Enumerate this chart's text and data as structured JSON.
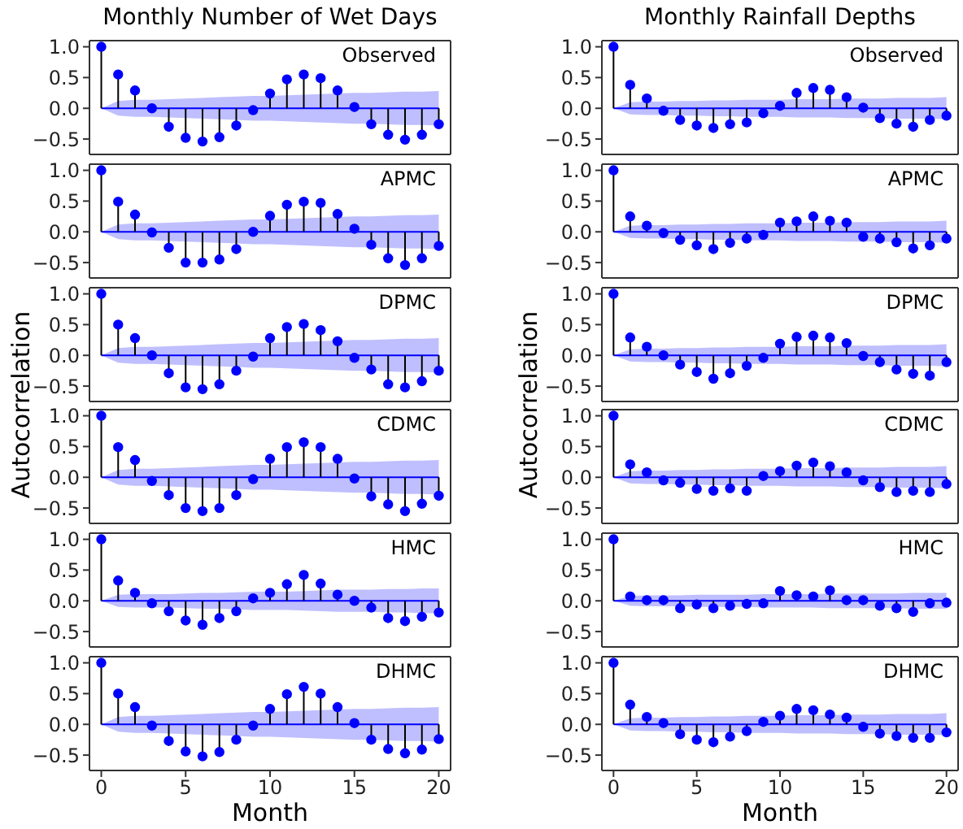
{
  "chart_data": [
    {
      "type": "lollipop",
      "title": "Monthly Number of Wet Days",
      "annotations": [
        "Observed"
      ],
      "tick_labels": "y",
      "marker": "circle",
      "xlim": [
        -0.7,
        20.7
      ],
      "xticks": [
        0,
        5,
        10,
        15,
        20
      ],
      "ylim": [
        -0.75,
        1.1
      ],
      "yticks": [
        {
          "value": -0.5,
          "label": "−0.5"
        },
        {
          "value": 0,
          "label": "0.0"
        },
        {
          "value": 0.5,
          "label": "0.5"
        },
        {
          "value": 1,
          "label": "1.0"
        }
      ],
      "x": [
        0,
        1,
        2,
        3,
        4,
        5,
        6,
        7,
        8,
        9,
        10,
        11,
        12,
        13,
        14,
        15,
        16,
        17,
        18,
        19,
        20
      ],
      "series": [
        {
          "color": "#0000ff",
          "values": [
            1.0,
            0.55,
            0.29,
            0.0,
            -0.3,
            -0.48,
            -0.54,
            -0.47,
            -0.28,
            -0.03,
            0.24,
            0.47,
            0.55,
            0.49,
            0.29,
            0.02,
            -0.26,
            -0.43,
            -0.51,
            -0.43,
            -0.26
          ]
        },
        {
          "type": "line",
          "marker": "none",
          "color": "#0000ff",
          "values": [
            0,
            0,
            0,
            0,
            0,
            0,
            0,
            0,
            0,
            0,
            0,
            0,
            0,
            0,
            0,
            0,
            0,
            0,
            0,
            0,
            0
          ],
          "upper": [
            0,
            0.12,
            0.14,
            0.14,
            0.15,
            0.16,
            0.17,
            0.18,
            0.19,
            0.2,
            0.2,
            0.21,
            0.22,
            0.23,
            0.24,
            0.25,
            0.25,
            0.26,
            0.27,
            0.27,
            0.28
          ],
          "lower": [
            0,
            -0.12,
            -0.14,
            -0.14,
            -0.15,
            -0.16,
            -0.17,
            -0.18,
            -0.19,
            -0.2,
            -0.2,
            -0.21,
            -0.22,
            -0.23,
            -0.24,
            -0.25,
            -0.25,
            -0.26,
            -0.27,
            -0.27,
            -0.28
          ]
        }
      ]
    },
    {
      "type": "lollipop",
      "title": "Monthly Rainfall Depths",
      "annotations": [
        "Observed"
      ],
      "tick_labels": "y",
      "marker": "circle",
      "xlim": [
        -0.7,
        20.7
      ],
      "xticks": [
        0,
        5,
        10,
        15,
        20
      ],
      "ylim": [
        -0.75,
        1.1
      ],
      "yticks": [
        {
          "value": -0.5,
          "label": "−0.5"
        },
        {
          "value": 0,
          "label": "0.0"
        },
        {
          "value": 0.5,
          "label": "0.5"
        },
        {
          "value": 1,
          "label": "1.0"
        }
      ],
      "x": [
        0,
        1,
        2,
        3,
        4,
        5,
        6,
        7,
        8,
        9,
        10,
        11,
        12,
        13,
        14,
        15,
        16,
        17,
        18,
        19,
        20
      ],
      "series": [
        {
          "color": "#0000ff",
          "values": [
            1.0,
            0.38,
            0.16,
            -0.04,
            -0.19,
            -0.28,
            -0.32,
            -0.26,
            -0.23,
            -0.08,
            0.04,
            0.25,
            0.33,
            0.3,
            0.18,
            0.01,
            -0.16,
            -0.25,
            -0.3,
            -0.19,
            -0.12
          ]
        },
        {
          "type": "line",
          "marker": "none",
          "color": "#0000ff",
          "values": [
            0,
            0,
            0,
            0,
            0,
            0,
            0,
            0,
            0,
            0,
            0,
            0,
            0,
            0,
            0,
            0,
            0,
            0,
            0,
            0,
            0
          ],
          "upper": [
            0,
            0.1,
            0.11,
            0.11,
            0.12,
            0.12,
            0.13,
            0.13,
            0.14,
            0.14,
            0.14,
            0.15,
            0.15,
            0.15,
            0.16,
            0.16,
            0.16,
            0.17,
            0.17,
            0.17,
            0.18
          ],
          "lower": [
            0,
            -0.1,
            -0.11,
            -0.11,
            -0.12,
            -0.12,
            -0.13,
            -0.13,
            -0.14,
            -0.14,
            -0.14,
            -0.15,
            -0.15,
            -0.15,
            -0.16,
            -0.16,
            -0.16,
            -0.17,
            -0.17,
            -0.17,
            -0.18
          ]
        }
      ]
    },
    {
      "type": "lollipop",
      "annotations": [
        "APMC"
      ],
      "tick_labels": "y",
      "marker": "circle",
      "xlim": [
        -0.7,
        20.7
      ],
      "xticks": [
        0,
        5,
        10,
        15,
        20
      ],
      "ylim": [
        -0.75,
        1.1
      ],
      "yticks": [
        {
          "value": -0.5,
          "label": "−0.5"
        },
        {
          "value": 0,
          "label": "0.0"
        },
        {
          "value": 0.5,
          "label": "0.5"
        },
        {
          "value": 1,
          "label": "1.0"
        }
      ],
      "x": [
        0,
        1,
        2,
        3,
        4,
        5,
        6,
        7,
        8,
        9,
        10,
        11,
        12,
        13,
        14,
        15,
        16,
        17,
        18,
        19,
        20
      ],
      "series": [
        {
          "color": "#0000ff",
          "values": [
            1.0,
            0.49,
            0.28,
            -0.01,
            -0.26,
            -0.5,
            -0.5,
            -0.45,
            -0.28,
            0.0,
            0.26,
            0.44,
            0.49,
            0.47,
            0.29,
            0.05,
            -0.21,
            -0.43,
            -0.54,
            -0.43,
            -0.23
          ]
        },
        {
          "type": "line",
          "marker": "none",
          "color": "#0000ff",
          "values": [
            0,
            0,
            0,
            0,
            0,
            0,
            0,
            0,
            0,
            0,
            0,
            0,
            0,
            0,
            0,
            0,
            0,
            0,
            0,
            0,
            0
          ],
          "upper": [
            0,
            0.12,
            0.14,
            0.14,
            0.15,
            0.16,
            0.17,
            0.18,
            0.19,
            0.2,
            0.2,
            0.21,
            0.22,
            0.23,
            0.24,
            0.25,
            0.25,
            0.26,
            0.27,
            0.27,
            0.28
          ],
          "lower": [
            0,
            -0.12,
            -0.14,
            -0.14,
            -0.15,
            -0.16,
            -0.17,
            -0.18,
            -0.19,
            -0.2,
            -0.2,
            -0.21,
            -0.22,
            -0.23,
            -0.24,
            -0.25,
            -0.25,
            -0.26,
            -0.27,
            -0.27,
            -0.28
          ]
        }
      ]
    },
    {
      "type": "lollipop",
      "annotations": [
        "APMC"
      ],
      "tick_labels": "y",
      "marker": "circle",
      "xlim": [
        -0.7,
        20.7
      ],
      "xticks": [
        0,
        5,
        10,
        15,
        20
      ],
      "ylim": [
        -0.75,
        1.1
      ],
      "yticks": [
        {
          "value": -0.5,
          "label": "−0.5"
        },
        {
          "value": 0,
          "label": "0.0"
        },
        {
          "value": 0.5,
          "label": "0.5"
        },
        {
          "value": 1,
          "label": "1.0"
        }
      ],
      "x": [
        0,
        1,
        2,
        3,
        4,
        5,
        6,
        7,
        8,
        9,
        10,
        11,
        12,
        13,
        14,
        15,
        16,
        17,
        18,
        19,
        20
      ],
      "series": [
        {
          "color": "#0000ff",
          "values": [
            1.0,
            0.25,
            0.1,
            -0.02,
            -0.13,
            -0.22,
            -0.28,
            -0.18,
            -0.11,
            -0.05,
            0.15,
            0.17,
            0.25,
            0.18,
            0.15,
            -0.08,
            -0.11,
            -0.17,
            -0.27,
            -0.22,
            -0.11
          ]
        },
        {
          "type": "line",
          "marker": "none",
          "color": "#0000ff",
          "values": [
            0,
            0,
            0,
            0,
            0,
            0,
            0,
            0,
            0,
            0,
            0,
            0,
            0,
            0,
            0,
            0,
            0,
            0,
            0,
            0,
            0
          ],
          "upper": [
            0,
            0.1,
            0.11,
            0.11,
            0.12,
            0.12,
            0.13,
            0.13,
            0.14,
            0.14,
            0.14,
            0.15,
            0.15,
            0.15,
            0.16,
            0.16,
            0.16,
            0.17,
            0.17,
            0.17,
            0.18
          ],
          "lower": [
            0,
            -0.1,
            -0.11,
            -0.11,
            -0.12,
            -0.12,
            -0.13,
            -0.13,
            -0.14,
            -0.14,
            -0.14,
            -0.15,
            -0.15,
            -0.15,
            -0.16,
            -0.16,
            -0.16,
            -0.17,
            -0.17,
            -0.17,
            -0.18
          ]
        }
      ]
    },
    {
      "type": "lollipop",
      "ylabel": "Autocorrelation",
      "annotations": [
        "DPMC"
      ],
      "tick_labels": "y",
      "marker": "circle",
      "xlim": [
        -0.7,
        20.7
      ],
      "xticks": [
        0,
        5,
        10,
        15,
        20
      ],
      "ylim": [
        -0.75,
        1.1
      ],
      "yticks": [
        {
          "value": -0.5,
          "label": "−0.5"
        },
        {
          "value": 0,
          "label": "0.0"
        },
        {
          "value": 0.5,
          "label": "0.5"
        },
        {
          "value": 1,
          "label": "1.0"
        }
      ],
      "x": [
        0,
        1,
        2,
        3,
        4,
        5,
        6,
        7,
        8,
        9,
        10,
        11,
        12,
        13,
        14,
        15,
        16,
        17,
        18,
        19,
        20
      ],
      "series": [
        {
          "color": "#0000ff",
          "values": [
            1.0,
            0.5,
            0.28,
            0.0,
            -0.29,
            -0.52,
            -0.55,
            -0.47,
            -0.25,
            -0.02,
            0.28,
            0.46,
            0.51,
            0.41,
            0.23,
            -0.04,
            -0.23,
            -0.47,
            -0.52,
            -0.42,
            -0.25
          ]
        },
        {
          "type": "line",
          "marker": "none",
          "color": "#0000ff",
          "values": [
            0,
            0,
            0,
            0,
            0,
            0,
            0,
            0,
            0,
            0,
            0,
            0,
            0,
            0,
            0,
            0,
            0,
            0,
            0,
            0,
            0
          ],
          "upper": [
            0,
            0.12,
            0.14,
            0.14,
            0.15,
            0.16,
            0.17,
            0.18,
            0.19,
            0.2,
            0.2,
            0.21,
            0.22,
            0.23,
            0.24,
            0.25,
            0.25,
            0.26,
            0.27,
            0.27,
            0.28
          ],
          "lower": [
            0,
            -0.12,
            -0.14,
            -0.14,
            -0.15,
            -0.16,
            -0.17,
            -0.18,
            -0.19,
            -0.2,
            -0.2,
            -0.21,
            -0.22,
            -0.23,
            -0.24,
            -0.25,
            -0.25,
            -0.26,
            -0.27,
            -0.27,
            -0.28
          ]
        }
      ]
    },
    {
      "type": "lollipop",
      "ylabel": "Autocorrelation",
      "annotations": [
        "DPMC"
      ],
      "tick_labels": "y",
      "marker": "circle",
      "xlim": [
        -0.7,
        20.7
      ],
      "xticks": [
        0,
        5,
        10,
        15,
        20
      ],
      "ylim": [
        -0.75,
        1.1
      ],
      "yticks": [
        {
          "value": -0.5,
          "label": "−0.5"
        },
        {
          "value": 0,
          "label": "0.0"
        },
        {
          "value": 0.5,
          "label": "0.5"
        },
        {
          "value": 1,
          "label": "1.0"
        }
      ],
      "x": [
        0,
        1,
        2,
        3,
        4,
        5,
        6,
        7,
        8,
        9,
        10,
        11,
        12,
        13,
        14,
        15,
        16,
        17,
        18,
        19,
        20
      ],
      "series": [
        {
          "color": "#0000ff",
          "values": [
            1.0,
            0.29,
            0.14,
            0.0,
            -0.15,
            -0.27,
            -0.38,
            -0.29,
            -0.17,
            -0.04,
            0.19,
            0.3,
            0.32,
            0.29,
            0.2,
            -0.01,
            -0.11,
            -0.23,
            -0.3,
            -0.33,
            -0.11
          ]
        },
        {
          "type": "line",
          "marker": "none",
          "color": "#0000ff",
          "values": [
            0,
            0,
            0,
            0,
            0,
            0,
            0,
            0,
            0,
            0,
            0,
            0,
            0,
            0,
            0,
            0,
            0,
            0,
            0,
            0,
            0
          ],
          "upper": [
            0,
            0.1,
            0.11,
            0.11,
            0.12,
            0.12,
            0.13,
            0.13,
            0.14,
            0.14,
            0.14,
            0.15,
            0.15,
            0.15,
            0.16,
            0.16,
            0.16,
            0.17,
            0.17,
            0.17,
            0.18
          ],
          "lower": [
            0,
            -0.1,
            -0.11,
            -0.11,
            -0.12,
            -0.12,
            -0.13,
            -0.13,
            -0.14,
            -0.14,
            -0.14,
            -0.15,
            -0.15,
            -0.15,
            -0.16,
            -0.16,
            -0.16,
            -0.17,
            -0.17,
            -0.17,
            -0.18
          ]
        }
      ]
    },
    {
      "type": "lollipop",
      "annotations": [
        "CDMC"
      ],
      "tick_labels": "y",
      "marker": "circle",
      "xlim": [
        -0.7,
        20.7
      ],
      "xticks": [
        0,
        5,
        10,
        15,
        20
      ],
      "ylim": [
        -0.75,
        1.1
      ],
      "yticks": [
        {
          "value": -0.5,
          "label": "−0.5"
        },
        {
          "value": 0,
          "label": "0.0"
        },
        {
          "value": 0.5,
          "label": "0.5"
        },
        {
          "value": 1,
          "label": "1.0"
        }
      ],
      "x": [
        0,
        1,
        2,
        3,
        4,
        5,
        6,
        7,
        8,
        9,
        10,
        11,
        12,
        13,
        14,
        15,
        16,
        17,
        18,
        19,
        20
      ],
      "series": [
        {
          "color": "#0000ff",
          "values": [
            1.0,
            0.49,
            0.28,
            -0.06,
            -0.29,
            -0.5,
            -0.55,
            -0.5,
            -0.29,
            -0.03,
            0.3,
            0.49,
            0.57,
            0.49,
            0.3,
            -0.02,
            -0.31,
            -0.44,
            -0.55,
            -0.43,
            -0.3
          ]
        },
        {
          "type": "line",
          "marker": "none",
          "color": "#0000ff",
          "values": [
            0,
            0,
            0,
            0,
            0,
            0,
            0,
            0,
            0,
            0,
            0,
            0,
            0,
            0,
            0,
            0,
            0,
            0,
            0,
            0,
            0
          ],
          "upper": [
            0,
            0.12,
            0.14,
            0.14,
            0.15,
            0.16,
            0.17,
            0.18,
            0.19,
            0.2,
            0.2,
            0.21,
            0.22,
            0.23,
            0.24,
            0.25,
            0.25,
            0.26,
            0.27,
            0.27,
            0.28
          ],
          "lower": [
            0,
            -0.12,
            -0.14,
            -0.14,
            -0.15,
            -0.16,
            -0.17,
            -0.18,
            -0.19,
            -0.2,
            -0.2,
            -0.21,
            -0.22,
            -0.23,
            -0.24,
            -0.25,
            -0.25,
            -0.26,
            -0.27,
            -0.27,
            -0.28
          ]
        }
      ]
    },
    {
      "type": "lollipop",
      "annotations": [
        "CDMC"
      ],
      "tick_labels": "y",
      "marker": "circle",
      "xlim": [
        -0.7,
        20.7
      ],
      "xticks": [
        0,
        5,
        10,
        15,
        20
      ],
      "ylim": [
        -0.75,
        1.1
      ],
      "yticks": [
        {
          "value": -0.5,
          "label": "−0.5"
        },
        {
          "value": 0,
          "label": "0.0"
        },
        {
          "value": 0.5,
          "label": "0.5"
        },
        {
          "value": 1,
          "label": "1.0"
        }
      ],
      "x": [
        0,
        1,
        2,
        3,
        4,
        5,
        6,
        7,
        8,
        9,
        10,
        11,
        12,
        13,
        14,
        15,
        16,
        17,
        18,
        19,
        20
      ],
      "series": [
        {
          "color": "#0000ff",
          "values": [
            1.0,
            0.21,
            0.08,
            -0.05,
            -0.09,
            -0.19,
            -0.22,
            -0.18,
            -0.22,
            0.02,
            0.1,
            0.19,
            0.24,
            0.18,
            0.08,
            -0.05,
            -0.16,
            -0.24,
            -0.22,
            -0.24,
            -0.11
          ]
        },
        {
          "type": "line",
          "marker": "none",
          "color": "#0000ff",
          "values": [
            0,
            0,
            0,
            0,
            0,
            0,
            0,
            0,
            0,
            0,
            0,
            0,
            0,
            0,
            0,
            0,
            0,
            0,
            0,
            0,
            0
          ],
          "upper": [
            0,
            0.1,
            0.11,
            0.11,
            0.12,
            0.12,
            0.13,
            0.13,
            0.14,
            0.14,
            0.14,
            0.15,
            0.15,
            0.15,
            0.16,
            0.16,
            0.16,
            0.17,
            0.17,
            0.17,
            0.18
          ],
          "lower": [
            0,
            -0.1,
            -0.11,
            -0.11,
            -0.12,
            -0.12,
            -0.13,
            -0.13,
            -0.14,
            -0.14,
            -0.14,
            -0.15,
            -0.15,
            -0.15,
            -0.16,
            -0.16,
            -0.16,
            -0.17,
            -0.17,
            -0.17,
            -0.18
          ]
        }
      ]
    },
    {
      "type": "lollipop",
      "annotations": [
        "HMC"
      ],
      "tick_labels": "y",
      "marker": "circle",
      "xlim": [
        -0.7,
        20.7
      ],
      "xticks": [
        0,
        5,
        10,
        15,
        20
      ],
      "ylim": [
        -0.75,
        1.1
      ],
      "yticks": [
        {
          "value": -0.5,
          "label": "−0.5"
        },
        {
          "value": 0,
          "label": "0.0"
        },
        {
          "value": 0.5,
          "label": "0.5"
        },
        {
          "value": 1,
          "label": "1.0"
        }
      ],
      "x": [
        0,
        1,
        2,
        3,
        4,
        5,
        6,
        7,
        8,
        9,
        10,
        11,
        12,
        13,
        14,
        15,
        16,
        17,
        18,
        19,
        20
      ],
      "series": [
        {
          "color": "#0000ff",
          "values": [
            1.0,
            0.33,
            0.13,
            -0.04,
            -0.17,
            -0.32,
            -0.39,
            -0.28,
            -0.17,
            0.04,
            0.13,
            0.27,
            0.42,
            0.28,
            0.1,
            0.0,
            -0.11,
            -0.28,
            -0.33,
            -0.26,
            -0.19
          ]
        },
        {
          "type": "line",
          "marker": "none",
          "color": "#0000ff",
          "values": [
            0,
            0,
            0,
            0,
            0,
            0,
            0,
            0,
            0,
            0,
            0,
            0,
            0,
            0,
            0,
            0,
            0,
            0,
            0,
            0,
            0
          ],
          "upper": [
            0,
            0.1,
            0.11,
            0.11,
            0.11,
            0.12,
            0.13,
            0.13,
            0.14,
            0.15,
            0.15,
            0.15,
            0.16,
            0.17,
            0.18,
            0.18,
            0.18,
            0.19,
            0.19,
            0.2,
            0.2
          ],
          "lower": [
            0,
            -0.1,
            -0.11,
            -0.11,
            -0.11,
            -0.12,
            -0.13,
            -0.13,
            -0.14,
            -0.15,
            -0.15,
            -0.15,
            -0.16,
            -0.17,
            -0.18,
            -0.18,
            -0.18,
            -0.19,
            -0.19,
            -0.2,
            -0.2
          ]
        }
      ]
    },
    {
      "type": "lollipop",
      "annotations": [
        "HMC"
      ],
      "tick_labels": "y",
      "marker": "circle",
      "xlim": [
        -0.7,
        20.7
      ],
      "xticks": [
        0,
        5,
        10,
        15,
        20
      ],
      "ylim": [
        -0.75,
        1.1
      ],
      "yticks": [
        {
          "value": -0.5,
          "label": "−0.5"
        },
        {
          "value": 0,
          "label": "0.0"
        },
        {
          "value": 0.5,
          "label": "0.5"
        },
        {
          "value": 1,
          "label": "1.0"
        }
      ],
      "x": [
        0,
        1,
        2,
        3,
        4,
        5,
        6,
        7,
        8,
        9,
        10,
        11,
        12,
        13,
        14,
        15,
        16,
        17,
        18,
        19,
        20
      ],
      "series": [
        {
          "color": "#0000ff",
          "values": [
            1.0,
            0.07,
            0.01,
            0.01,
            -0.12,
            -0.06,
            -0.12,
            -0.08,
            -0.05,
            -0.04,
            0.16,
            0.09,
            0.07,
            0.17,
            0.01,
            0.01,
            -0.08,
            -0.12,
            -0.18,
            -0.04,
            -0.03
          ]
        },
        {
          "type": "line",
          "marker": "none",
          "color": "#0000ff",
          "values": [
            0,
            0,
            0,
            0,
            0,
            0,
            0,
            0,
            0,
            0,
            0,
            0,
            0,
            0,
            0,
            0,
            0,
            0,
            0,
            0,
            0
          ],
          "upper": [
            0,
            0.08,
            0.09,
            0.09,
            0.09,
            0.1,
            0.1,
            0.1,
            0.1,
            0.11,
            0.11,
            0.11,
            0.11,
            0.12,
            0.12,
            0.12,
            0.12,
            0.12,
            0.13,
            0.13,
            0.13
          ],
          "lower": [
            0,
            -0.08,
            -0.09,
            -0.09,
            -0.09,
            -0.1,
            -0.1,
            -0.1,
            -0.1,
            -0.11,
            -0.11,
            -0.11,
            -0.11,
            -0.12,
            -0.12,
            -0.12,
            -0.12,
            -0.12,
            -0.13,
            -0.13,
            -0.13
          ]
        }
      ]
    },
    {
      "type": "lollipop",
      "xlabel": "Month",
      "annotations": [
        "DHMC"
      ],
      "marker": "circle",
      "xlim": [
        -0.7,
        20.7
      ],
      "xticks": [
        0,
        5,
        10,
        15,
        20
      ],
      "ylim": [
        -0.75,
        1.1
      ],
      "yticks": [
        {
          "value": -0.5,
          "label": "−0.5"
        },
        {
          "value": 0,
          "label": "0.0"
        },
        {
          "value": 0.5,
          "label": "0.5"
        },
        {
          "value": 1,
          "label": "1.0"
        }
      ],
      "x": [
        0,
        1,
        2,
        3,
        4,
        5,
        6,
        7,
        8,
        9,
        10,
        11,
        12,
        13,
        14,
        15,
        16,
        17,
        18,
        19,
        20
      ],
      "series": [
        {
          "color": "#0000ff",
          "values": [
            1.0,
            0.5,
            0.28,
            -0.02,
            -0.27,
            -0.44,
            -0.52,
            -0.45,
            -0.25,
            -0.02,
            0.25,
            0.49,
            0.61,
            0.5,
            0.28,
            0.02,
            -0.25,
            -0.4,
            -0.47,
            -0.41,
            -0.24
          ]
        },
        {
          "type": "line",
          "marker": "none",
          "color": "#0000ff",
          "values": [
            0,
            0,
            0,
            0,
            0,
            0,
            0,
            0,
            0,
            0,
            0,
            0,
            0,
            0,
            0,
            0,
            0,
            0,
            0,
            0,
            0
          ],
          "upper": [
            0,
            0.12,
            0.14,
            0.14,
            0.15,
            0.16,
            0.17,
            0.18,
            0.19,
            0.2,
            0.2,
            0.21,
            0.22,
            0.23,
            0.24,
            0.25,
            0.25,
            0.26,
            0.27,
            0.27,
            0.28
          ],
          "lower": [
            0,
            -0.12,
            -0.14,
            -0.14,
            -0.15,
            -0.16,
            -0.17,
            -0.18,
            -0.19,
            -0.2,
            -0.2,
            -0.21,
            -0.22,
            -0.23,
            -0.24,
            -0.25,
            -0.25,
            -0.26,
            -0.27,
            -0.27,
            -0.28
          ]
        }
      ]
    },
    {
      "type": "lollipop",
      "xlabel": "Month",
      "annotations": [
        "DHMC"
      ],
      "marker": "circle",
      "xlim": [
        -0.7,
        20.7
      ],
      "xticks": [
        0,
        5,
        10,
        15,
        20
      ],
      "ylim": [
        -0.75,
        1.1
      ],
      "yticks": [
        {
          "value": -0.5,
          "label": "−0.5"
        },
        {
          "value": 0,
          "label": "0.0"
        },
        {
          "value": 0.5,
          "label": "0.5"
        },
        {
          "value": 1,
          "label": "1.0"
        }
      ],
      "x": [
        0,
        1,
        2,
        3,
        4,
        5,
        6,
        7,
        8,
        9,
        10,
        11,
        12,
        13,
        14,
        15,
        16,
        17,
        18,
        19,
        20
      ],
      "series": [
        {
          "color": "#0000ff",
          "values": [
            1.0,
            0.32,
            0.12,
            0.02,
            -0.16,
            -0.25,
            -0.29,
            -0.2,
            -0.11,
            0.04,
            0.14,
            0.25,
            0.23,
            0.16,
            0.11,
            -0.04,
            -0.15,
            -0.19,
            -0.22,
            -0.22,
            -0.13
          ]
        },
        {
          "type": "line",
          "marker": "none",
          "color": "#0000ff",
          "values": [
            0,
            0,
            0,
            0,
            0,
            0,
            0,
            0,
            0,
            0,
            0,
            0,
            0,
            0,
            0,
            0,
            0,
            0,
            0,
            0,
            0
          ],
          "upper": [
            0,
            0.1,
            0.11,
            0.11,
            0.12,
            0.12,
            0.13,
            0.13,
            0.14,
            0.14,
            0.14,
            0.15,
            0.15,
            0.15,
            0.16,
            0.16,
            0.16,
            0.17,
            0.17,
            0.17,
            0.18
          ],
          "lower": [
            0,
            -0.1,
            -0.11,
            -0.11,
            -0.12,
            -0.12,
            -0.13,
            -0.13,
            -0.14,
            -0.14,
            -0.14,
            -0.15,
            -0.15,
            -0.15,
            -0.16,
            -0.16,
            -0.16,
            -0.17,
            -0.17,
            -0.17,
            -0.18
          ]
        }
      ]
    }
  ]
}
